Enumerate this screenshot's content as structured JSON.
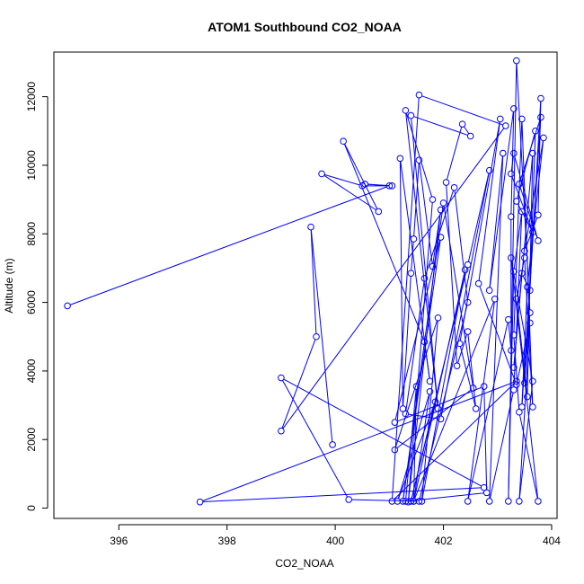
{
  "chart_data": {
    "type": "line",
    "title": "ATOM1 Southbound CO2_NOAA",
    "xlabel": "CO2_NOAA",
    "ylabel": "Altitude (m)",
    "xlim": [
      394.8,
      404.1
    ],
    "ylim": [
      -300,
      13300
    ],
    "xticks": [
      396,
      398,
      400,
      402,
      404
    ],
    "yticks": [
      0,
      2000,
      4000,
      6000,
      8000,
      10000,
      12000
    ],
    "grid": false,
    "legend": "none",
    "series": [
      {
        "color": "#0000ff",
        "marker": "open-circle",
        "points": [
          [
            395.05,
            5900
          ],
          [
            401.0,
            9400
          ],
          [
            400.55,
            9450
          ],
          [
            401.05,
            9400
          ],
          [
            400.5,
            9400
          ],
          [
            399.75,
            9750
          ],
          [
            400.8,
            8650
          ],
          [
            400.15,
            10700
          ],
          [
            401.65,
            4850
          ],
          [
            401.75,
            3700
          ],
          [
            401.2,
            10200
          ],
          [
            401.25,
            2900
          ],
          [
            401.4,
            6850
          ],
          [
            401.45,
            7850
          ],
          [
            401.55,
            10150
          ],
          [
            401.8,
            7050
          ],
          [
            401.95,
            8700
          ],
          [
            401.35,
            180
          ],
          [
            401.8,
            9000
          ],
          [
            401.3,
            11600
          ],
          [
            401.9,
            2900
          ],
          [
            401.4,
            11450
          ],
          [
            402.5,
            10850
          ],
          [
            402.35,
            11200
          ],
          [
            402.05,
            9500
          ],
          [
            402.25,
            4150
          ],
          [
            402.45,
            5150
          ],
          [
            402.6,
            2900
          ],
          [
            402.3,
            4800
          ],
          [
            403.05,
            11350
          ],
          [
            402.65,
            6550
          ],
          [
            403.35,
            3600
          ],
          [
            403.6,
            5400
          ],
          [
            403.4,
            200
          ],
          [
            403.65,
            3700
          ],
          [
            403.25,
            7300
          ],
          [
            403.75,
            200
          ],
          [
            403.4,
            2800
          ],
          [
            403.3,
            5050
          ],
          [
            403.45,
            11350
          ],
          [
            403.65,
            2950
          ],
          [
            403.5,
            7300
          ],
          [
            403.35,
            6100
          ],
          [
            403.55,
            3250
          ],
          [
            403.65,
            10350
          ],
          [
            403.3,
            4100
          ],
          [
            403.45,
            6850
          ],
          [
            403.6,
            6350
          ],
          [
            403.7,
            11000
          ],
          [
            403.35,
            8950
          ],
          [
            403.65,
            8050
          ],
          [
            403.25,
            9750
          ],
          [
            403.3,
            10350
          ],
          [
            403.75,
            7800
          ],
          [
            403.4,
            9450
          ],
          [
            403.8,
            11400
          ],
          [
            403.45,
            2950
          ],
          [
            403.55,
            6450
          ],
          [
            403.85,
            10800
          ],
          [
            403.5,
            7500
          ],
          [
            403.75,
            8550
          ],
          [
            403.8,
            11950
          ],
          [
            403.5,
            3650
          ],
          [
            403.6,
            5700
          ],
          [
            403.35,
            13050
          ],
          [
            403.2,
            200
          ],
          [
            403.3,
            6900
          ],
          [
            403.45,
            8650
          ],
          [
            403.3,
            3450
          ],
          [
            402.85,
            200
          ],
          [
            403.1,
            10350
          ],
          [
            402.85,
            6350
          ],
          [
            403.3,
            11650
          ],
          [
            403.25,
            8500
          ],
          [
            403.25,
            4600
          ],
          [
            403.2,
            5500
          ],
          [
            402.45,
            200
          ],
          [
            402.95,
            6100
          ],
          [
            401.45,
            200
          ],
          [
            401.5,
            3550
          ],
          [
            401.3,
            200
          ],
          [
            402.8,
            450
          ],
          [
            402.75,
            3550
          ],
          [
            401.1,
            2500
          ],
          [
            401.95,
            7900
          ],
          [
            401.25,
            200
          ],
          [
            402.0,
            8900
          ],
          [
            402.55,
            3500
          ],
          [
            401.1,
            1700
          ],
          [
            401.9,
            5550
          ],
          [
            401.6,
            200
          ],
          [
            402.4,
            6950
          ],
          [
            401.45,
            200
          ],
          [
            401.75,
            3400
          ],
          [
            401.15,
            200
          ],
          [
            401.85,
            3100
          ],
          [
            401.4,
            200
          ],
          [
            402.45,
            7100
          ],
          [
            402.85,
            9850
          ],
          [
            401.95,
            2600
          ],
          [
            401.3,
            2750
          ],
          [
            401.65,
            6700
          ],
          [
            402.2,
            9350
          ],
          [
            402.45,
            6000
          ],
          [
            401.55,
            200
          ],
          [
            400.25,
            250
          ],
          [
            399.0,
            3800
          ],
          [
            402.75,
            600
          ],
          [
            397.5,
            180
          ],
          [
            403.35,
            3700
          ],
          [
            401.05,
            200
          ],
          [
            401.55,
            12050
          ],
          [
            403.15,
            11150
          ],
          [
            399.0,
            2250
          ],
          [
            399.65,
            5000
          ],
          [
            399.55,
            8200
          ],
          [
            399.95,
            1850
          ]
        ]
      }
    ]
  }
}
